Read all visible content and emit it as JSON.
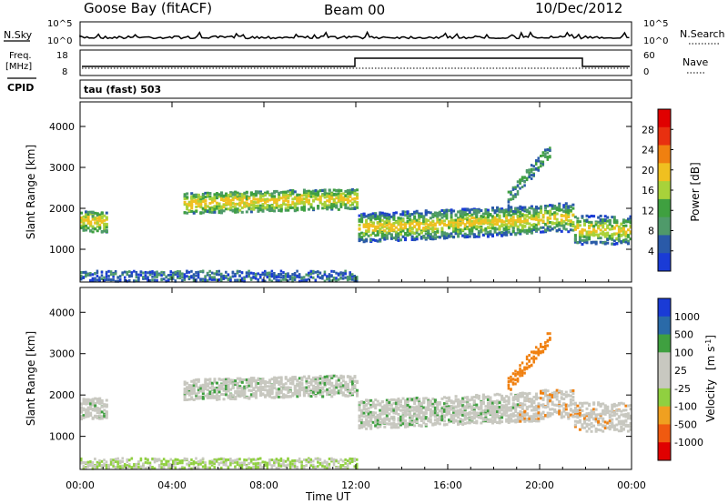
{
  "header": {
    "station": "Goose Bay (fitACF)",
    "beam": "Beam 00",
    "date": "10/Dec/2012"
  },
  "nsky": {
    "label": "N.Sky",
    "tick_top": "10^5",
    "tick_bottom": "10^0",
    "right_label": "N.Search"
  },
  "freq": {
    "label_top": "Freq.",
    "label_bottom": "[MHz]",
    "tick_top": "18",
    "tick_bottom": "8",
    "right_tick_top": "60",
    "right_tick_bottom": "0",
    "right_label": "Nave",
    "cpid_label": "CPID",
    "cpid_value": "tau (fast) 503"
  },
  "colors": {
    "power": [
      "#1a3bd6",
      "#2a5aa8",
      "#4f9a6a",
      "#3fa040",
      "#a8d23a",
      "#f0c020",
      "#f08010",
      "#e83010",
      "#e00000"
    ],
    "velocity_scale": [
      "#e00000",
      "#f05a10",
      "#f0a020",
      "#90d040",
      "#c8c8c0",
      "#c8c8c0",
      "#3fa040",
      "#2a6aa8",
      "#1a3bd6"
    ]
  },
  "chart_data": [
    {
      "type": "heatmap",
      "name": "power",
      "ylabel": "Slant Range [km]",
      "ylim": [
        200,
        4600
      ],
      "yticks": [
        "1000",
        "2000",
        "3000",
        "4000"
      ],
      "colorbar_label": "Power [dB]",
      "colorbar_ticks": [
        "4",
        "8",
        "12",
        "16",
        "20",
        "24",
        "28"
      ],
      "xlim_hours": [
        0,
        24
      ],
      "notes": "Scatter band centered near 2000 km from ~04:30 to ~21:00 UT, dropping to ~1400 km after 12:00 UT; ground scatter <400 km."
    },
    {
      "type": "heatmap",
      "name": "velocity",
      "ylabel": "Slant Range [km]",
      "ylim": [
        200,
        4600
      ],
      "yticks": [
        "1000",
        "2000",
        "3000",
        "4000"
      ],
      "colorbar_label": "Velocity [m s^-1]",
      "colorbar_ticks": [
        "1000",
        "500",
        "100",
        "25",
        "-25",
        "-100",
        "-500",
        "-1000"
      ],
      "xlim_hours": [
        0,
        24
      ]
    }
  ],
  "xaxis": {
    "label": "Time UT",
    "ticks": [
      "00:00",
      "04:00",
      "08:00",
      "12:00",
      "16:00",
      "20:00",
      "00:00"
    ]
  }
}
